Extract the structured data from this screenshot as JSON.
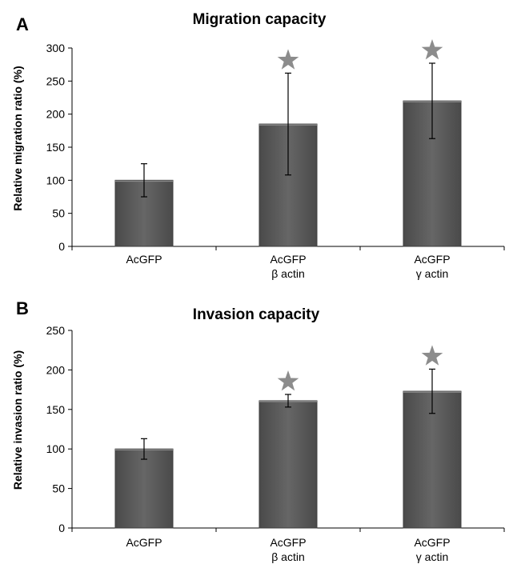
{
  "chart_data": [
    {
      "type": "bar",
      "panel": "A",
      "title": "Migration capacity",
      "xlabel": "",
      "ylabel": "Relative migration ratio (%)",
      "ylim": [
        0,
        300
      ],
      "yticks": [
        0,
        50,
        100,
        150,
        200,
        250,
        300
      ],
      "categories": [
        [
          "AcGFP"
        ],
        [
          "AcGFP",
          "β actin"
        ],
        [
          "AcGFP",
          "γ actin"
        ]
      ],
      "values": [
        100,
        185,
        220
      ],
      "error": [
        25,
        77,
        57
      ],
      "significant": [
        false,
        true,
        true
      ],
      "significance_marker": "★",
      "grid": false,
      "colors": {
        "bar": "#5a5a5a",
        "bar_edge": "#3e3e3e",
        "marker": "#8c8c8c"
      }
    },
    {
      "type": "bar",
      "panel": "B",
      "title": "Invasion capacity",
      "xlabel": "",
      "ylabel": "Relative invasion ratio (%)",
      "ylim": [
        0,
        250
      ],
      "yticks": [
        0,
        50,
        100,
        150,
        200,
        250
      ],
      "categories": [
        [
          "AcGFP"
        ],
        [
          "AcGFP",
          "β actin"
        ],
        [
          "AcGFP",
          "γ actin"
        ]
      ],
      "values": [
        100,
        161,
        173
      ],
      "error": [
        13,
        8,
        28
      ],
      "significant": [
        false,
        true,
        true
      ],
      "significance_marker": "★",
      "grid": false,
      "colors": {
        "bar": "#5a5a5a",
        "bar_edge": "#3e3e3e",
        "marker": "#8c8c8c"
      }
    }
  ]
}
